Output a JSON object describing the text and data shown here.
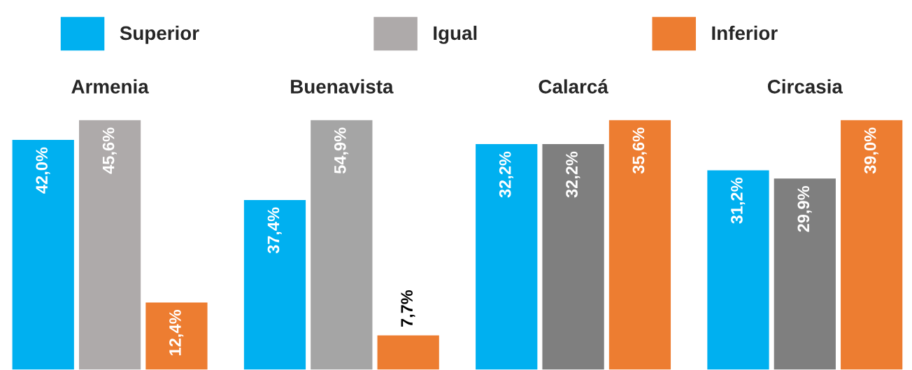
{
  "chart_data": [
    {
      "type": "bar",
      "title": "Armenia",
      "categories": [
        null
      ],
      "legend": "top",
      "data_labels": true,
      "series": [
        {
          "name": "Superior",
          "color": "#00b0f0",
          "values": [
            42.0
          ],
          "value_labels": [
            "42,0%"
          ]
        },
        {
          "name": "Igual",
          "color": "#aeaaaa",
          "values": [
            45.6
          ],
          "value_labels": [
            "45,6%"
          ]
        },
        {
          "name": "Inferior",
          "color": "#ed7d31",
          "values": [
            12.4
          ],
          "value_labels": [
            "12,4%"
          ]
        }
      ]
    },
    {
      "type": "bar",
      "title": "Buenavista",
      "categories": [
        null
      ],
      "data_labels": true,
      "series": [
        {
          "color": "#00b0f0",
          "values": [
            37.4
          ],
          "value_labels": [
            "37,4%"
          ]
        },
        {
          "color": "#a5a5a5",
          "values": [
            54.9
          ],
          "value_labels": [
            "54,9%"
          ]
        },
        {
          "color": "#ed7d31",
          "values": [
            7.7
          ],
          "value_labels": [
            "7,7%"
          ]
        }
      ]
    },
    {
      "type": "bar",
      "title": "Calarcá",
      "categories": [
        null
      ],
      "data_labels": true,
      "series": [
        {
          "color": "#00b0f0",
          "values": [
            32.2
          ],
          "value_labels": [
            "32,2%"
          ]
        },
        {
          "color": "#7f7f7f",
          "values": [
            32.2
          ],
          "value_labels": [
            "32,2%"
          ]
        },
        {
          "color": "#ed7d31",
          "values": [
            35.6
          ],
          "value_labels": [
            "35,6%"
          ]
        }
      ]
    },
    {
      "type": "bar",
      "title": "Circasia",
      "categories": [
        null
      ],
      "data_labels": true,
      "series": [
        {
          "color": "#00b0f0",
          "values": [
            31.2
          ],
          "value_labels": [
            "31,2%"
          ]
        },
        {
          "color": "#7f7f7f",
          "values": [
            29.9
          ],
          "value_labels": [
            "29,9%"
          ]
        },
        {
          "color": "#ed7d31",
          "values": [
            39.0
          ],
          "value_labels": [
            "39,0%"
          ]
        }
      ]
    }
  ]
}
